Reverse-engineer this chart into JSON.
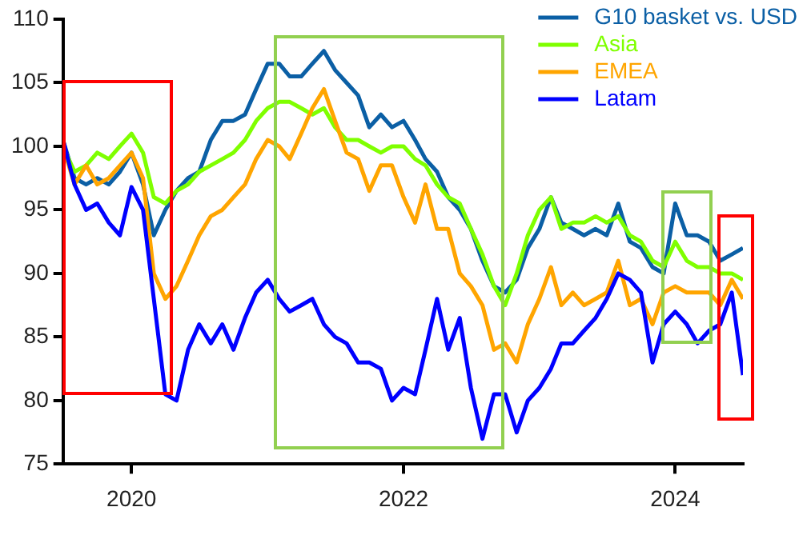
{
  "chart_data": {
    "type": "line",
    "x": [
      "2019-07",
      "2019-08",
      "2019-09",
      "2019-10",
      "2019-11",
      "2019-12",
      "2020-01",
      "2020-02",
      "2020-03",
      "2020-04",
      "2020-05",
      "2020-06",
      "2020-07",
      "2020-08",
      "2020-09",
      "2020-10",
      "2020-11",
      "2020-12",
      "2021-01",
      "2021-02",
      "2021-03",
      "2021-04",
      "2021-05",
      "2021-06",
      "2021-07",
      "2021-08",
      "2021-09",
      "2021-10",
      "2021-11",
      "2021-12",
      "2022-01",
      "2022-02",
      "2022-03",
      "2022-04",
      "2022-05",
      "2022-06",
      "2022-07",
      "2022-08",
      "2022-09",
      "2022-10",
      "2022-11",
      "2022-12",
      "2023-01",
      "2023-02",
      "2023-03",
      "2023-04",
      "2023-05",
      "2023-06",
      "2023-07",
      "2023-08",
      "2023-09",
      "2023-10",
      "2023-11",
      "2023-12",
      "2024-01",
      "2024-02",
      "2024-03",
      "2024-04",
      "2024-05",
      "2024-06",
      "2024-07"
    ],
    "series": [
      {
        "name": "G10 basket vs. USD",
        "color": "#0b5fa5",
        "values": [
          100.5,
          97.5,
          97,
          97.5,
          97,
          98,
          99.5,
          97,
          93,
          95,
          96.5,
          97.5,
          98,
          100.5,
          102,
          102,
          102.5,
          104.5,
          106.5,
          106.5,
          105.5,
          105.5,
          106.5,
          107.5,
          106,
          105,
          104,
          101.5,
          102.5,
          101.5,
          102,
          100.5,
          99,
          98,
          96,
          95,
          93.5,
          91,
          89,
          88.5,
          89.5,
          92,
          93.5,
          96,
          94,
          93.5,
          93,
          93.5,
          93,
          95.5,
          92.5,
          92,
          90.5,
          90,
          95.5,
          93,
          93,
          92.5,
          91,
          91.5,
          92
        ]
      },
      {
        "name": "Asia",
        "color": "#7fff00",
        "values": [
          100,
          98,
          98.5,
          99.5,
          99,
          100,
          101,
          99.5,
          96,
          95.5,
          96.5,
          97,
          98,
          98.5,
          99,
          99.5,
          100.5,
          102,
          103,
          103.5,
          103.5,
          103,
          102.5,
          103,
          101.5,
          100.5,
          100.5,
          100,
          99.5,
          100,
          100,
          99,
          98.5,
          97,
          96,
          95.5,
          93.5,
          91.5,
          89,
          87.5,
          90,
          93,
          95,
          96,
          93.5,
          94,
          94,
          94.5,
          94,
          94.5,
          93,
          92.5,
          91,
          90.5,
          92.5,
          91,
          90.5,
          90.5,
          90,
          90,
          89.5
        ]
      },
      {
        "name": "EMEA",
        "color": "#ffa500",
        "values": [
          100,
          97,
          98.5,
          97,
          97.5,
          98.5,
          99.5,
          97.5,
          90,
          88,
          89,
          91,
          93,
          94.5,
          95,
          96,
          97,
          99,
          100.5,
          100,
          99,
          101,
          103,
          104.5,
          102,
          99.5,
          99,
          96.5,
          98.5,
          98.5,
          96,
          94,
          97,
          93.5,
          93.5,
          90,
          89,
          87.5,
          84,
          84.5,
          83,
          86,
          88,
          90.5,
          87.5,
          88.5,
          87.5,
          88,
          88.5,
          91,
          87.5,
          88,
          86,
          88.5,
          89,
          88.5,
          88.5,
          88.5,
          87.5,
          89.5,
          88
        ]
      },
      {
        "name": "Latam",
        "color": "#0000ff",
        "values": [
          100.5,
          97,
          95,
          95.5,
          94,
          93,
          96.8,
          95,
          88,
          80.5,
          80,
          84,
          86,
          84.5,
          86,
          84,
          86.5,
          88.5,
          89.5,
          88,
          87,
          87.5,
          88,
          86,
          85,
          84.5,
          83,
          83,
          82.5,
          80,
          81,
          80.5,
          84,
          88,
          84,
          86.5,
          81,
          77,
          80.5,
          80.5,
          77.5,
          80,
          81,
          82.5,
          84.5,
          84.5,
          85.5,
          86.5,
          88,
          90,
          89.5,
          88.5,
          83,
          86,
          87,
          86,
          84.5,
          85.5,
          86,
          88.5,
          82
        ]
      }
    ],
    "xlim": [
      "2019-07",
      "2024-07"
    ],
    "xticks": [
      "2020",
      "2022",
      "2024"
    ],
    "ylim": [
      75,
      110
    ],
    "yticks": [
      75,
      80,
      85,
      90,
      95,
      100,
      105,
      110
    ],
    "grid": false,
    "legend": "top right"
  }
}
